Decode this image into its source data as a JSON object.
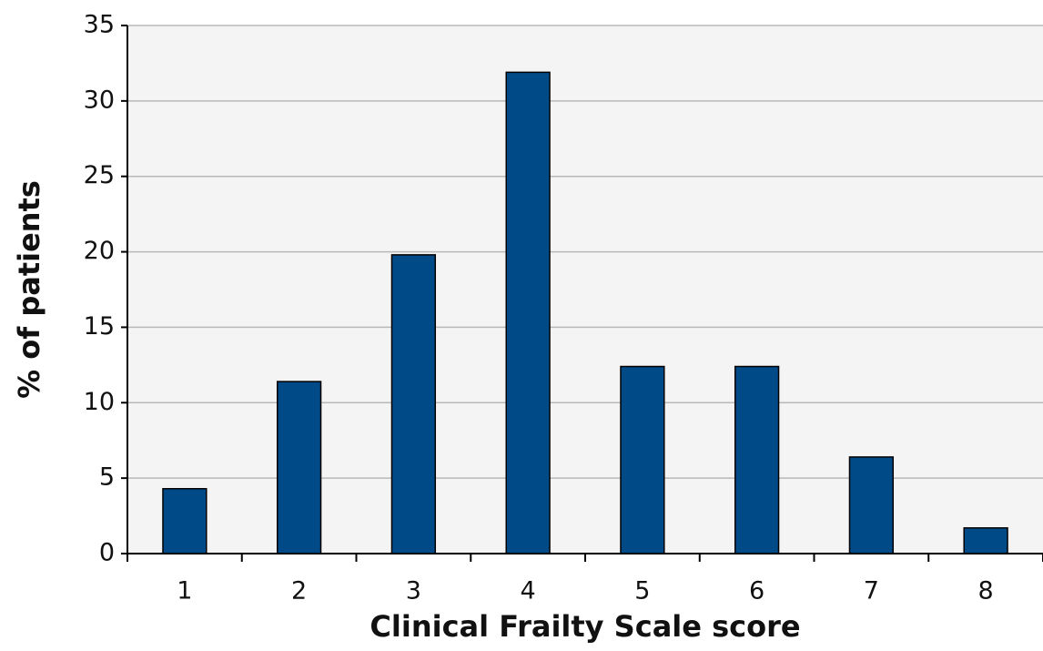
{
  "chart_data": {
    "type": "bar",
    "xlabel": "Clinical Frailty Scale score",
    "ylabel": "% of patients",
    "categories": [
      "1",
      "2",
      "3",
      "4",
      "5",
      "6",
      "7",
      "8"
    ],
    "values": [
      4.3,
      11.4,
      19.8,
      31.9,
      12.4,
      12.4,
      6.4,
      1.7
    ],
    "color": "#004a87",
    "ylim": [
      0,
      35
    ],
    "yticks": [
      0,
      5,
      10,
      15,
      20,
      25,
      30,
      35
    ],
    "grid": true
  }
}
